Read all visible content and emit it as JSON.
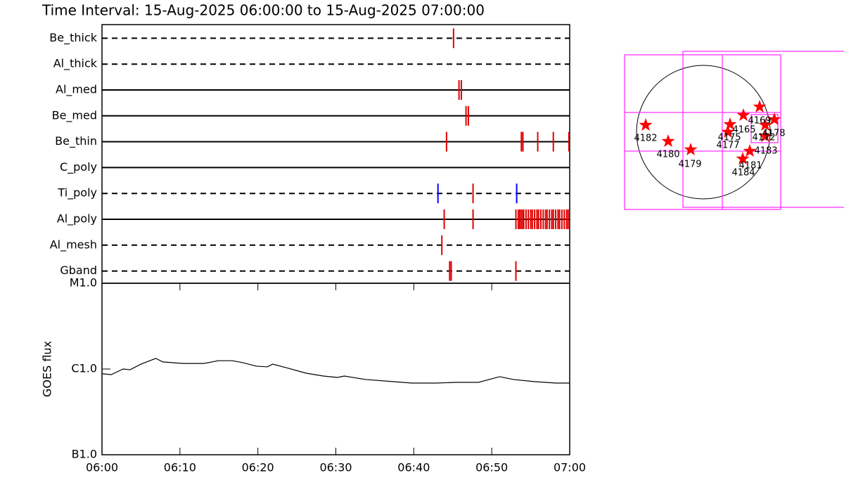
{
  "title": "Time Interval: 15-Aug-2025 06:00:00 to 15-Aug-2025 07:00:00",
  "chart_data": [
    {
      "type": "timeline",
      "xlim": [
        0,
        60
      ],
      "rows": [
        {
          "name": "Be_thick",
          "dashed": true,
          "color": "#e00000",
          "events": [
            45.1
          ]
        },
        {
          "name": "Al_thick",
          "dashed": true,
          "color": "#e00000",
          "events": []
        },
        {
          "name": "Al_med",
          "dashed": false,
          "color": "#e00000",
          "events": [
            45.8,
            46.1
          ]
        },
        {
          "name": "Be_med",
          "dashed": false,
          "color": "#e00000",
          "events": [
            46.7,
            47.0
          ]
        },
        {
          "name": "Be_thin",
          "dashed": false,
          "color": "#e00000",
          "events": [
            44.2,
            53.8,
            54.0,
            55.9,
            57.9,
            59.9
          ]
        },
        {
          "name": "C_poly",
          "dashed": false,
          "color": "#e00000",
          "events": []
        },
        {
          "name": "Ti_poly",
          "dashed": true,
          "color": "#e00000",
          "colors": [
            "#0000ff",
            "#e00000",
            "#0000ff"
          ],
          "events": [
            43.1,
            47.6,
            53.2
          ]
        },
        {
          "name": "Al_poly",
          "dashed": false,
          "color": "#e00000",
          "events": [
            43.9,
            47.6,
            53.1,
            53.4,
            53.6,
            53.8,
            54.0,
            54.1,
            54.4,
            54.7,
            55.0,
            55.2,
            55.5,
            55.8,
            56.0,
            56.3,
            56.6,
            56.9,
            57.1,
            57.4,
            57.7,
            57.9,
            58.2,
            58.5,
            58.7,
            59.0,
            59.3,
            59.6,
            59.8
          ]
        },
        {
          "name": "Al_mesh",
          "dashed": true,
          "color": "#e00000",
          "events": [
            43.6
          ]
        },
        {
          "name": "Gband",
          "dashed": true,
          "color": "#e00000",
          "events": [
            44.6,
            44.8,
            53.1
          ]
        }
      ]
    },
    {
      "type": "line",
      "ylabel": "GOES flux",
      "log": true,
      "color": "#000000",
      "x": [
        0,
        1.2,
        2.7,
        3.6,
        5.0,
        6.9,
        7.8,
        10.4,
        13.1,
        14.9,
        16.7,
        18.0,
        19.8,
        21.2,
        21.9,
        23.9,
        26.2,
        28.4,
        30.2,
        31.1,
        33.8,
        37.4,
        39.7,
        42.9,
        45.6,
        48.3,
        51.0,
        52.8,
        55.5,
        58.2,
        60
      ],
      "values": [
        8.8e-07,
        8.6e-07,
        1e-06,
        9.8e-07,
        1.14e-06,
        1.33e-06,
        1.21e-06,
        1.16e-06,
        1.16e-06,
        1.25e-06,
        1.25e-06,
        1.19e-06,
        1.08e-06,
        1.06e-06,
        1.14e-06,
        1.02e-06,
        8.93e-07,
        8.28e-07,
        7.97e-07,
        8.28e-07,
        7.54e-07,
        7.12e-07,
        6.86e-07,
        6.86e-07,
        6.99e-07,
        6.99e-07,
        8.13e-07,
        7.54e-07,
        7.12e-07,
        6.86e-07,
        6.86e-07
      ],
      "xlim": [
        0,
        60
      ],
      "xticks": [
        {
          "value": 0,
          "label": "06:00"
        },
        {
          "value": 10,
          "label": "06:10"
        },
        {
          "value": 20,
          "label": "06:20"
        },
        {
          "value": 30,
          "label": "06:30"
        },
        {
          "value": 40,
          "label": "06:40"
        },
        {
          "value": 50,
          "label": "06:50"
        },
        {
          "value": 60,
          "label": "07:00"
        }
      ],
      "ylim": [
        1e-07,
        1e-05
      ],
      "yticks": [
        {
          "value": 1e-05,
          "label": "M1.0"
        },
        {
          "value": 1e-06,
          "label": "C1.0"
        },
        {
          "value": 1e-07,
          "label": "B1.0"
        }
      ]
    }
  ],
  "map": {
    "labels": [
      "4182",
      "4180",
      "4179",
      "4175",
      "4177",
      "4165",
      "4169",
      "4178",
      "4172",
      "4183",
      "4181",
      "4184"
    ]
  }
}
